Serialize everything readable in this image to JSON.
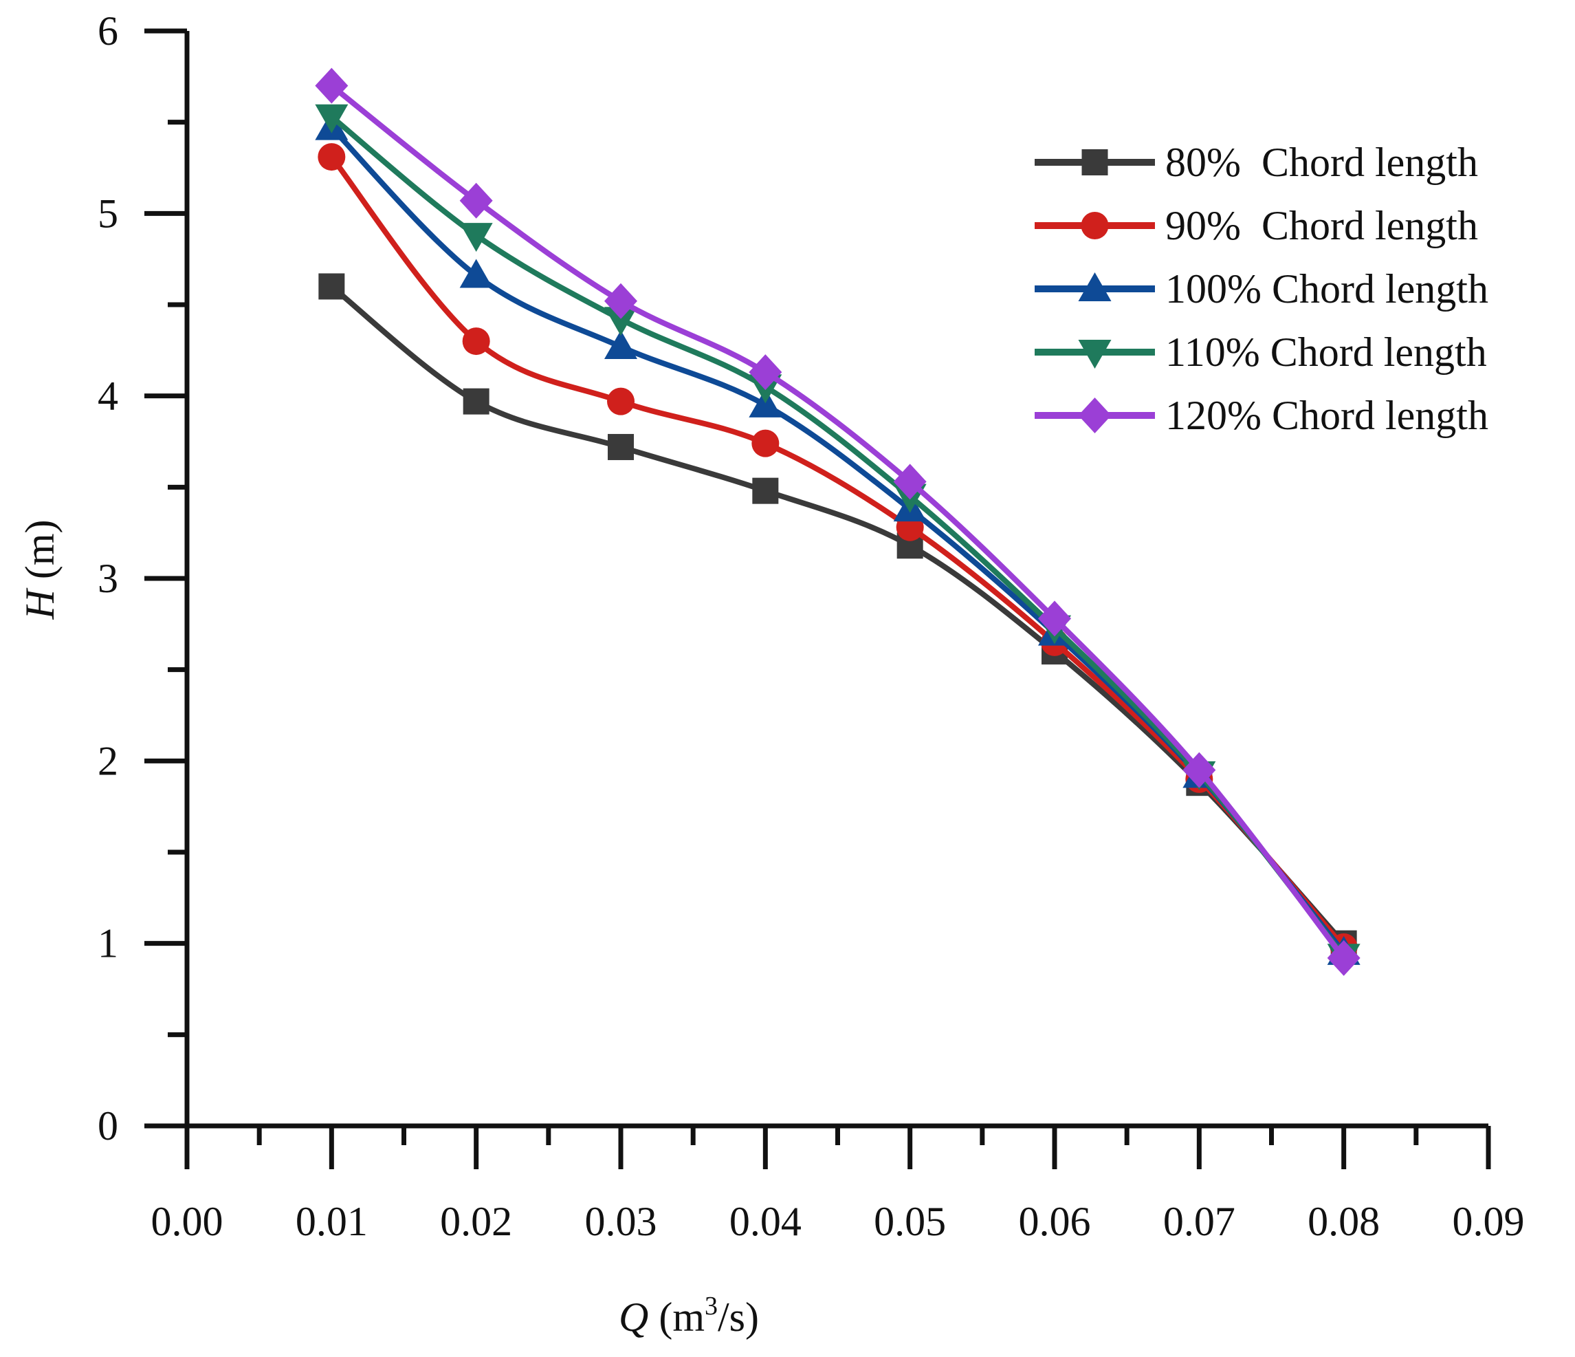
{
  "chart_data": {
    "type": "line",
    "title": "",
    "xlabel": {
      "symbol": "Q",
      "unit_prefix": " (m",
      "unit_sup": "3",
      "unit_suffix": "/s)"
    },
    "ylabel": {
      "symbol": "H",
      "unit": " (m)"
    },
    "xlim": [
      0,
      0.09
    ],
    "ylim": [
      0,
      6
    ],
    "x_ticks": [
      "0.00",
      "0.01",
      "0.02",
      "0.03",
      "0.04",
      "0.05",
      "0.06",
      "0.07",
      "0.08",
      "0.09"
    ],
    "y_ticks": [
      "0",
      "1",
      "2",
      "3",
      "4",
      "5",
      "6"
    ],
    "grid": false,
    "legend_position": "top-right",
    "x": [
      0.01,
      0.02,
      0.03,
      0.04,
      0.05,
      0.06,
      0.07,
      0.08
    ],
    "series": [
      {
        "name": "80%  Chord length",
        "color": "#3a3a3a",
        "marker": "square",
        "values": [
          4.6,
          3.97,
          3.72,
          3.48,
          3.18,
          2.6,
          1.88,
          1.0
        ]
      },
      {
        "name": "90%  Chord length",
        "color": "#d0201c",
        "marker": "circle",
        "values": [
          5.31,
          4.3,
          3.97,
          3.74,
          3.28,
          2.65,
          1.9,
          0.98
        ]
      },
      {
        "name": "100% Chord length",
        "color": "#0e4a96",
        "marker": "triangle-up",
        "values": [
          5.47,
          4.66,
          4.27,
          3.95,
          3.38,
          2.7,
          1.92,
          0.95
        ]
      },
      {
        "name": "110% Chord length",
        "color": "#1f7a5c",
        "marker": "triangle-down",
        "values": [
          5.53,
          4.88,
          4.42,
          4.05,
          3.45,
          2.73,
          1.93,
          0.93
        ]
      },
      {
        "name": "120% Chord length",
        "color": "#9b3fd6",
        "marker": "diamond",
        "values": [
          5.7,
          5.07,
          4.52,
          4.13,
          3.53,
          2.78,
          1.95,
          0.92
        ]
      }
    ]
  }
}
